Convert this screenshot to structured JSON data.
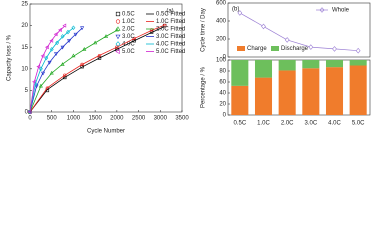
{
  "chart_data": [
    {
      "type": "scatter",
      "label": "(a)",
      "xlabel": "Cycle Number",
      "ylabel": "Capacity loss / %",
      "xlim": [
        0,
        3500
      ],
      "xticks": [
        0,
        500,
        1000,
        1500,
        2000,
        2500,
        3000,
        3500
      ],
      "ylim": [
        0,
        25
      ],
      "yticks": [
        0,
        5,
        10,
        15,
        20,
        25
      ],
      "series": [
        {
          "name": "0.5C",
          "type": "scatter",
          "marker": "square",
          "color": "#000000",
          "x": [
            0,
            400,
            800,
            1200,
            1600,
            2000,
            2400,
            2800,
            3100
          ],
          "values": [
            0,
            5,
            8,
            10.5,
            12.5,
            14.5,
            16.5,
            18.5,
            20
          ]
        },
        {
          "name": "1.0C",
          "type": "scatter",
          "marker": "circle",
          "color": "#e8211c",
          "x": [
            0,
            400,
            800,
            1200,
            1600,
            2000,
            2400,
            2800,
            3100
          ],
          "values": [
            0,
            5.5,
            8.5,
            11,
            13,
            15,
            17,
            19,
            20
          ]
        },
        {
          "name": "2.0C",
          "type": "scatter",
          "marker": "triangle",
          "color": "#22a822",
          "x": [
            0,
            250,
            500,
            750,
            1000,
            1250,
            1500,
            1750,
            2000
          ],
          "values": [
            0,
            6,
            9,
            11,
            13,
            14.5,
            16,
            17.5,
            19
          ]
        },
        {
          "name": "3.0C",
          "type": "scatter",
          "marker": "down",
          "color": "#2233cc",
          "x": [
            0,
            150,
            300,
            450,
            600,
            750,
            900,
            1050,
            1200
          ],
          "values": [
            0,
            6,
            9,
            11.5,
            13.5,
            15,
            16.5,
            18,
            19.5
          ]
        },
        {
          "name": "4.0C",
          "type": "scatter",
          "marker": "diamond",
          "color": "#00b8d0",
          "x": [
            0,
            125,
            250,
            375,
            500,
            625,
            750,
            875,
            1000
          ],
          "values": [
            0,
            6.5,
            10,
            12.5,
            14.5,
            16,
            17.5,
            18.5,
            19.5
          ]
        },
        {
          "name": "5.0C",
          "type": "scatter",
          "marker": "left",
          "color": "#d020d0",
          "x": [
            0,
            100,
            200,
            300,
            400,
            500,
            600,
            700,
            800
          ],
          "values": [
            0,
            7,
            10.5,
            13,
            15,
            16.5,
            18,
            19,
            20
          ]
        },
        {
          "name": "0.5C Fitted",
          "type": "line",
          "color": "#000000",
          "x": [
            0,
            400,
            800,
            1200,
            1600,
            2000,
            2400,
            2800,
            3100
          ],
          "values": [
            0,
            5.2,
            8,
            10.4,
            12.5,
            14.5,
            16.5,
            18.4,
            19.8
          ]
        },
        {
          "name": "1.0C Fitted",
          "type": "line",
          "color": "#e8211c",
          "x": [
            0,
            400,
            800,
            1200,
            1600,
            2000,
            2400,
            2800,
            3100
          ],
          "values": [
            0,
            5.6,
            8.5,
            11,
            13.1,
            15,
            17,
            18.9,
            20.1
          ]
        },
        {
          "name": "2.0C Fitted",
          "type": "line",
          "color": "#22a822",
          "x": [
            0,
            250,
            500,
            750,
            1000,
            1250,
            1500,
            1750,
            2000
          ],
          "values": [
            0,
            6,
            9,
            11.1,
            12.9,
            14.5,
            16,
            17.5,
            18.9
          ]
        },
        {
          "name": "3.0C Fitted",
          "type": "line",
          "color": "#2233cc",
          "x": [
            0,
            150,
            300,
            450,
            600,
            750,
            900,
            1050,
            1200
          ],
          "values": [
            0,
            6,
            9.1,
            11.5,
            13.4,
            15,
            16.5,
            18,
            19.4
          ]
        },
        {
          "name": "4.0C Fitted",
          "type": "line",
          "color": "#00b8d0",
          "x": [
            0,
            125,
            250,
            375,
            500,
            625,
            750,
            875,
            1000
          ],
          "values": [
            0,
            6.6,
            10,
            12.5,
            14.5,
            16.1,
            17.4,
            18.5,
            19.5
          ]
        },
        {
          "name": "5.0C Fitted",
          "type": "line",
          "color": "#d020d0",
          "x": [
            0,
            100,
            200,
            300,
            400,
            500,
            600,
            700,
            800
          ],
          "values": [
            0,
            7,
            10.5,
            13,
            15,
            16.6,
            17.9,
            19,
            19.9
          ]
        }
      ]
    },
    {
      "type": "line",
      "label": "(b)",
      "ylabel": "Cycle time / Day",
      "ylim": [
        0,
        600
      ],
      "yticks": [
        0,
        200,
        400,
        600
      ],
      "series": [
        {
          "name": "Whole",
          "color": "#9b7fd4",
          "values": [
            490,
            340,
            190,
            110,
            90,
            70
          ]
        }
      ]
    },
    {
      "type": "stacked_bar",
      "ylabel": "Percentage / %",
      "categories": [
        "0.5C",
        "1.0C",
        "2.0C",
        "3.0C",
        "4.0C",
        "5.0C"
      ],
      "ylim": [
        0,
        100
      ],
      "yticks": [
        0,
        20,
        40,
        60,
        80,
        100
      ],
      "series": [
        {
          "name": "Charge",
          "color": "#f07c2c",
          "values": [
            53,
            68,
            81,
            85,
            87,
            90
          ]
        },
        {
          "name": "Discharge",
          "color": "#6dbf5c",
          "values": [
            47,
            32,
            19,
            15,
            13,
            10
          ]
        }
      ]
    }
  ]
}
